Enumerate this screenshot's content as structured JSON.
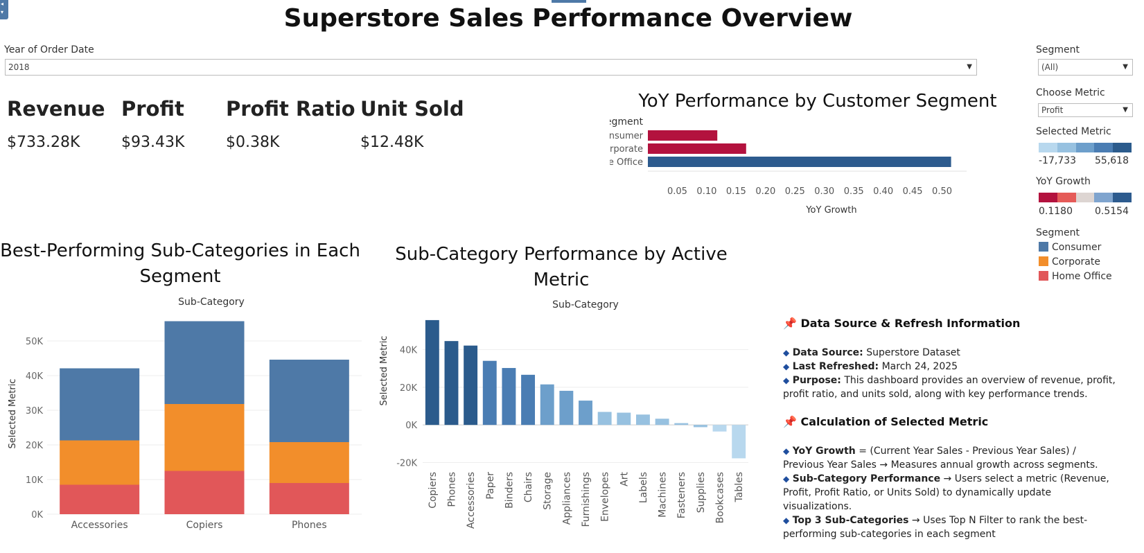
{
  "title": "Superstore Sales Performance Overview",
  "filters": {
    "year_label": "Year of Order Date",
    "year_value": "2018",
    "segment_label": "Segment",
    "segment_value": "(All)",
    "metric_label": "Choose Metric",
    "metric_value": "Profit"
  },
  "kpis": [
    {
      "label": "Revenue",
      "value": "$733.28K"
    },
    {
      "label": "Profit",
      "value": "$93.43K"
    },
    {
      "label": "Profit Ratio",
      "value": "$0.38K"
    },
    {
      "label": "Unit Sold",
      "value": "$12.48K"
    }
  ],
  "legends": {
    "selected_metric": {
      "title": "Selected Metric",
      "min": "-17,733",
      "max": "55,618",
      "colors": [
        "#b8d8ee",
        "#97c1e0",
        "#6d9fcb",
        "#4a7db3",
        "#2b5b8c"
      ]
    },
    "yoy_growth": {
      "title": "YoY Growth",
      "min": "0.1180",
      "max": "0.5154",
      "colors": [
        "#b3123e",
        "#e55b58",
        "#ddd5d2",
        "#7fa4ce",
        "#2d5b8e"
      ]
    },
    "segment": {
      "title": "Segment",
      "items": [
        {
          "label": "Consumer",
          "color": "#4e79a7"
        },
        {
          "label": "Corporate",
          "color": "#f28e2b"
        },
        {
          "label": "Home Office",
          "color": "#e15759"
        }
      ]
    }
  },
  "sections": {
    "yoy_title": "YoY Performance by Customer Segment",
    "best_title": "Best-Performing Sub-Categories in Each Segment",
    "subcat_title": "Sub-Category Performance by Active Metric"
  },
  "info": {
    "heading1": "Data Source & Refresh Information",
    "source_label": "Data Source:",
    "source_value": "Superstore Dataset",
    "refresh_label": "Last Refreshed:",
    "refresh_value": "March 24, 2025",
    "purpose_label": "Purpose:",
    "purpose_value": "This dashboard provides an overview of revenue, profit, profit ratio, and units sold, along with key performance trends.",
    "heading2": "Calculation of Selected Metric",
    "yoy_label": "YoY Growth",
    "yoy_value": "= (Current Year Sales - Previous Year Sales) / Previous Year Sales → Measures annual growth across segments.",
    "subperf_label": "Sub-Category Performance",
    "subperf_value": "→ Users select a metric (Revenue, Profit, Profit Ratio, or Units Sold) to dynamically update visualizations.",
    "top3_label": "Top 3 Sub-Categories",
    "top3_value": "→ Uses Top N Filter to rank the best-performing sub-categories in each segment"
  },
  "chart_data": [
    {
      "type": "bar",
      "orientation": "horizontal",
      "title": "YoY Performance by Customer Segment",
      "row_header": "Segment",
      "categories": [
        "Consumer",
        "Corporate",
        "Home Office"
      ],
      "values": [
        0.118,
        0.167,
        0.5154
      ],
      "colors": [
        "#b3123e",
        "#b3123e",
        "#2d5b8e"
      ],
      "xlabel": "YoY Growth",
      "xticks": [
        "0.05",
        "0.10",
        "0.15",
        "0.20",
        "0.25",
        "0.30",
        "0.35",
        "0.40",
        "0.45",
        "0.50"
      ],
      "xlim": [
        0,
        0.53
      ]
    },
    {
      "type": "bar",
      "stacked": true,
      "title": "Best-Performing Sub-Categories in Each Segment",
      "header": "Sub-Category",
      "categories": [
        "Accessories",
        "Copiers",
        "Phones"
      ],
      "series": [
        {
          "name": "Home Office",
          "color": "#e15759",
          "values": [
            8500,
            12500,
            9000
          ]
        },
        {
          "name": "Corporate",
          "color": "#f28e2b",
          "values": [
            12800,
            19300,
            11800
          ]
        },
        {
          "name": "Consumer",
          "color": "#4e79a7",
          "values": [
            20800,
            23900,
            23800
          ]
        }
      ],
      "ylabel": "Selected Metric",
      "yticks": [
        "0K",
        "10K",
        "20K",
        "30K",
        "40K",
        "50K"
      ],
      "ylim": [
        0,
        58000
      ],
      "grid": true
    },
    {
      "type": "bar",
      "title": "Sub-Category Performance by Active Metric",
      "header": "Sub-Category",
      "categories": [
        "Copiers",
        "Phones",
        "Accessories",
        "Paper",
        "Binders",
        "Chairs",
        "Storage",
        "Appliances",
        "Furnishings",
        "Envelopes",
        "Art",
        "Labels",
        "Machines",
        "Fasteners",
        "Supplies",
        "Bookcases",
        "Tables"
      ],
      "values": [
        55618,
        44500,
        42100,
        34000,
        30200,
        26600,
        21500,
        18100,
        12900,
        6900,
        6500,
        5500,
        3300,
        950,
        -1200,
        -3500,
        -17733
      ],
      "ylabel": "Selected Metric",
      "yticks": [
        "-20K",
        "0K",
        "20K",
        "40K"
      ],
      "ylim": [
        -22000,
        60000
      ],
      "grid": true
    }
  ]
}
